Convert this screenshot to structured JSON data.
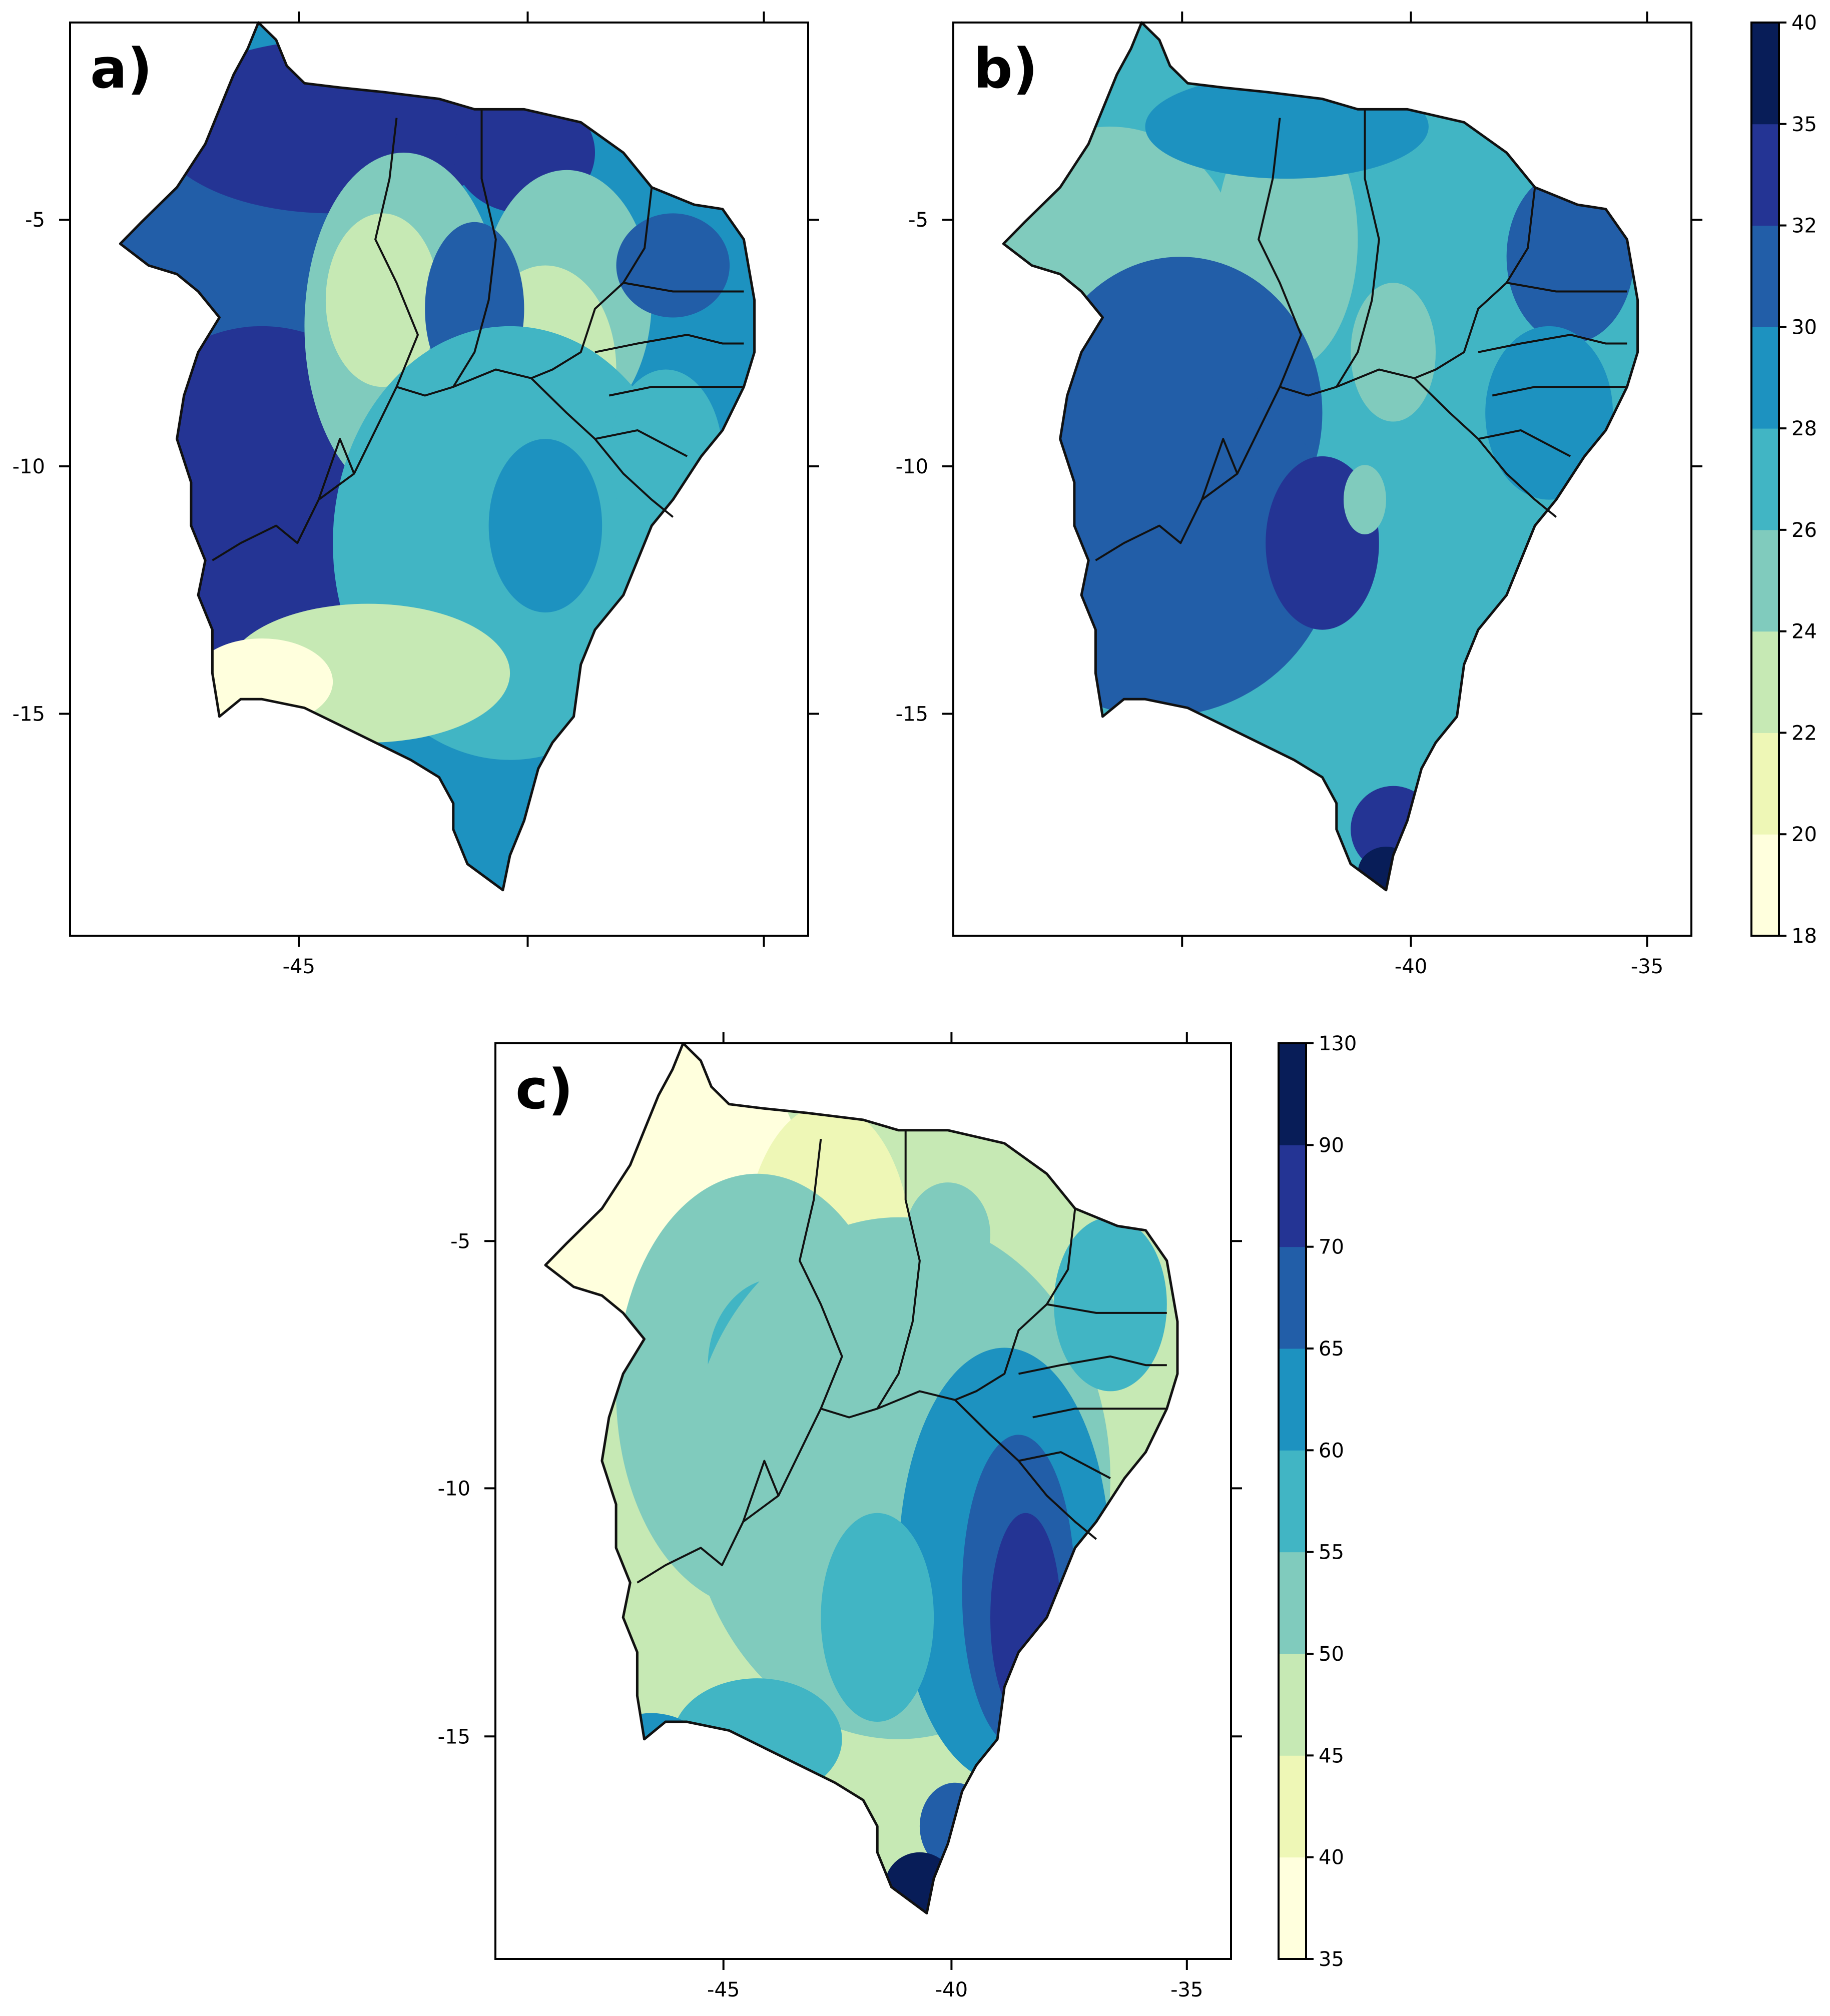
{
  "panels": [
    {
      "label": "a)",
      "x_ticks": [
        "-45",
        "-40",
        "-35"
      ],
      "y_ticks": [
        "-5",
        "-10",
        "-15"
      ],
      "shown_x_labels": [
        "-45",
        "",
        ""
      ]
    },
    {
      "label": "b)",
      "x_ticks": [
        "-45",
        "-40",
        "-35"
      ],
      "y_ticks": [
        "-5",
        "-10",
        "-15"
      ],
      "shown_x_labels": [
        "",
        "-40",
        "-35"
      ]
    },
    {
      "label": "c)",
      "x_ticks": [
        "-45",
        "-40",
        "-35"
      ],
      "y_ticks": [
        "-5",
        "-10",
        "-15"
      ],
      "shown_x_labels": [
        "-45",
        "-40",
        "-35"
      ]
    }
  ],
  "colorbar_ab": {
    "levels": [
      "18",
      "20",
      "22",
      "24",
      "26",
      "28",
      "30",
      "32",
      "35",
      "40"
    ],
    "colors": [
      "#ffffdd",
      "#eef7b6",
      "#c6e9b4",
      "#80cbbd",
      "#41b5c4",
      "#1d92c0",
      "#225ea8",
      "#243494",
      "#081d58"
    ]
  },
  "colorbar_c": {
    "levels": [
      "35",
      "40",
      "45",
      "50",
      "55",
      "60",
      "65",
      "70",
      "90",
      "130"
    ],
    "colors": [
      "#ffffdd",
      "#eef7b6",
      "#c6e9b4",
      "#80cbbd",
      "#41b5c4",
      "#1d92c0",
      "#225ea8",
      "#243494",
      "#081d58"
    ]
  }
}
